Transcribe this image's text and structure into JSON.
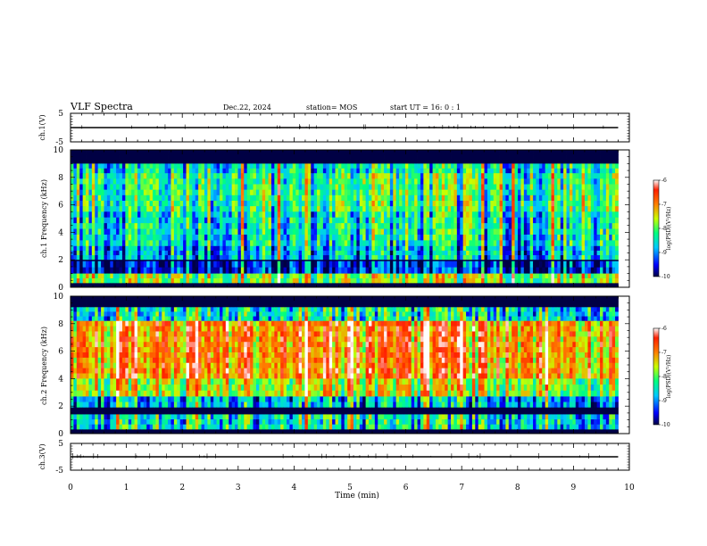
{
  "header": {
    "title": "VLF Spectra",
    "date": "Dec.22, 2024",
    "station": "station= MOS",
    "start": "start  UT =   16: 0  : 1"
  },
  "chart_data": [
    {
      "type": "line",
      "panel": "ch1-waveform",
      "ylabel": "ch.1(V)",
      "ylim": [
        -5,
        5
      ],
      "yticks": [
        "5",
        "-5"
      ],
      "x": [
        0,
        9.8
      ],
      "series": [
        {
          "values": [
            0,
            0
          ]
        }
      ],
      "xlim": [
        0,
        10
      ]
    },
    {
      "type": "heatmap",
      "panel": "ch1-spectrogram",
      "ylabel": "ch.1 Frequency  (kHz)",
      "ylim": [
        0,
        10
      ],
      "yticks": [
        "0",
        "2",
        "4",
        "6",
        "8",
        "10"
      ],
      "xlim": [
        0,
        10
      ],
      "x_extent": [
        0,
        9.8
      ],
      "colorbar": {
        "label": "log(PSD)(V²/Hz)",
        "range": [
          -10,
          -6
        ],
        "ticks": [
          "-6",
          "-7",
          "-8",
          "-9",
          "-10"
        ]
      },
      "bands": [
        {
          "f": [
            9.0,
            10.0
          ],
          "level": -10.0
        },
        {
          "f": [
            8.3,
            9.0
          ],
          "level": -8.6
        },
        {
          "f": [
            5.5,
            8.3
          ],
          "level": -8.3
        },
        {
          "f": [
            3.0,
            5.5
          ],
          "level": -8.6
        },
        {
          "f": [
            2.0,
            3.0
          ],
          "level": -8.9
        },
        {
          "f": [
            1.9,
            2.0
          ],
          "level": -10.0
        },
        {
          "f": [
            1.0,
            1.9
          ],
          "level": -9.5
        },
        {
          "f": [
            0.3,
            1.0
          ],
          "level": -7.9
        },
        {
          "f": [
            0.0,
            0.3
          ],
          "level": -10.0
        }
      ]
    },
    {
      "type": "heatmap",
      "panel": "ch2-spectrogram",
      "ylabel": "ch.2 Frequency  (kHz)",
      "ylim": [
        0,
        10
      ],
      "yticks": [
        "0",
        "2",
        "4",
        "6",
        "8",
        "10"
      ],
      "xlim": [
        0,
        10
      ],
      "x_extent": [
        0,
        9.8
      ],
      "colorbar": {
        "label": "log(PSD)(V²/Hz)",
        "range": [
          -10,
          -6
        ],
        "ticks": [
          "-6",
          "-7",
          "-8",
          "-9",
          "-10"
        ]
      },
      "bands": [
        {
          "f": [
            9.2,
            10.0
          ],
          "level": -10.0
        },
        {
          "f": [
            8.2,
            9.2
          ],
          "level": -8.6
        },
        {
          "f": [
            4.0,
            8.2
          ],
          "level": -7.1
        },
        {
          "f": [
            2.7,
            4.0
          ],
          "level": -7.8
        },
        {
          "f": [
            1.9,
            2.7
          ],
          "level": -8.9
        },
        {
          "f": [
            1.4,
            1.9
          ],
          "level": -10.0
        },
        {
          "f": [
            0.3,
            1.4
          ],
          "level": -8.6
        },
        {
          "f": [
            0.0,
            0.3
          ],
          "level": -10.0
        }
      ]
    },
    {
      "type": "line",
      "panel": "ch3-waveform",
      "ylabel": "ch.3(V)",
      "ylim": [
        -5,
        5
      ],
      "yticks": [
        "5",
        "-5"
      ],
      "x": [
        0,
        9.8
      ],
      "series": [
        {
          "values": [
            0,
            0
          ]
        }
      ],
      "xlim": [
        0,
        10
      ]
    }
  ],
  "xaxis": {
    "label": "Time  (min)",
    "ticks": [
      "0",
      "1",
      "2",
      "3",
      "4",
      "5",
      "6",
      "7",
      "8",
      "9",
      "10"
    ]
  },
  "colors": {
    "scale": [
      "#000044",
      "#0000ff",
      "#00c8ff",
      "#00ff80",
      "#c8ff00",
      "#ff8000",
      "#ff2000",
      "#ffffff"
    ]
  }
}
